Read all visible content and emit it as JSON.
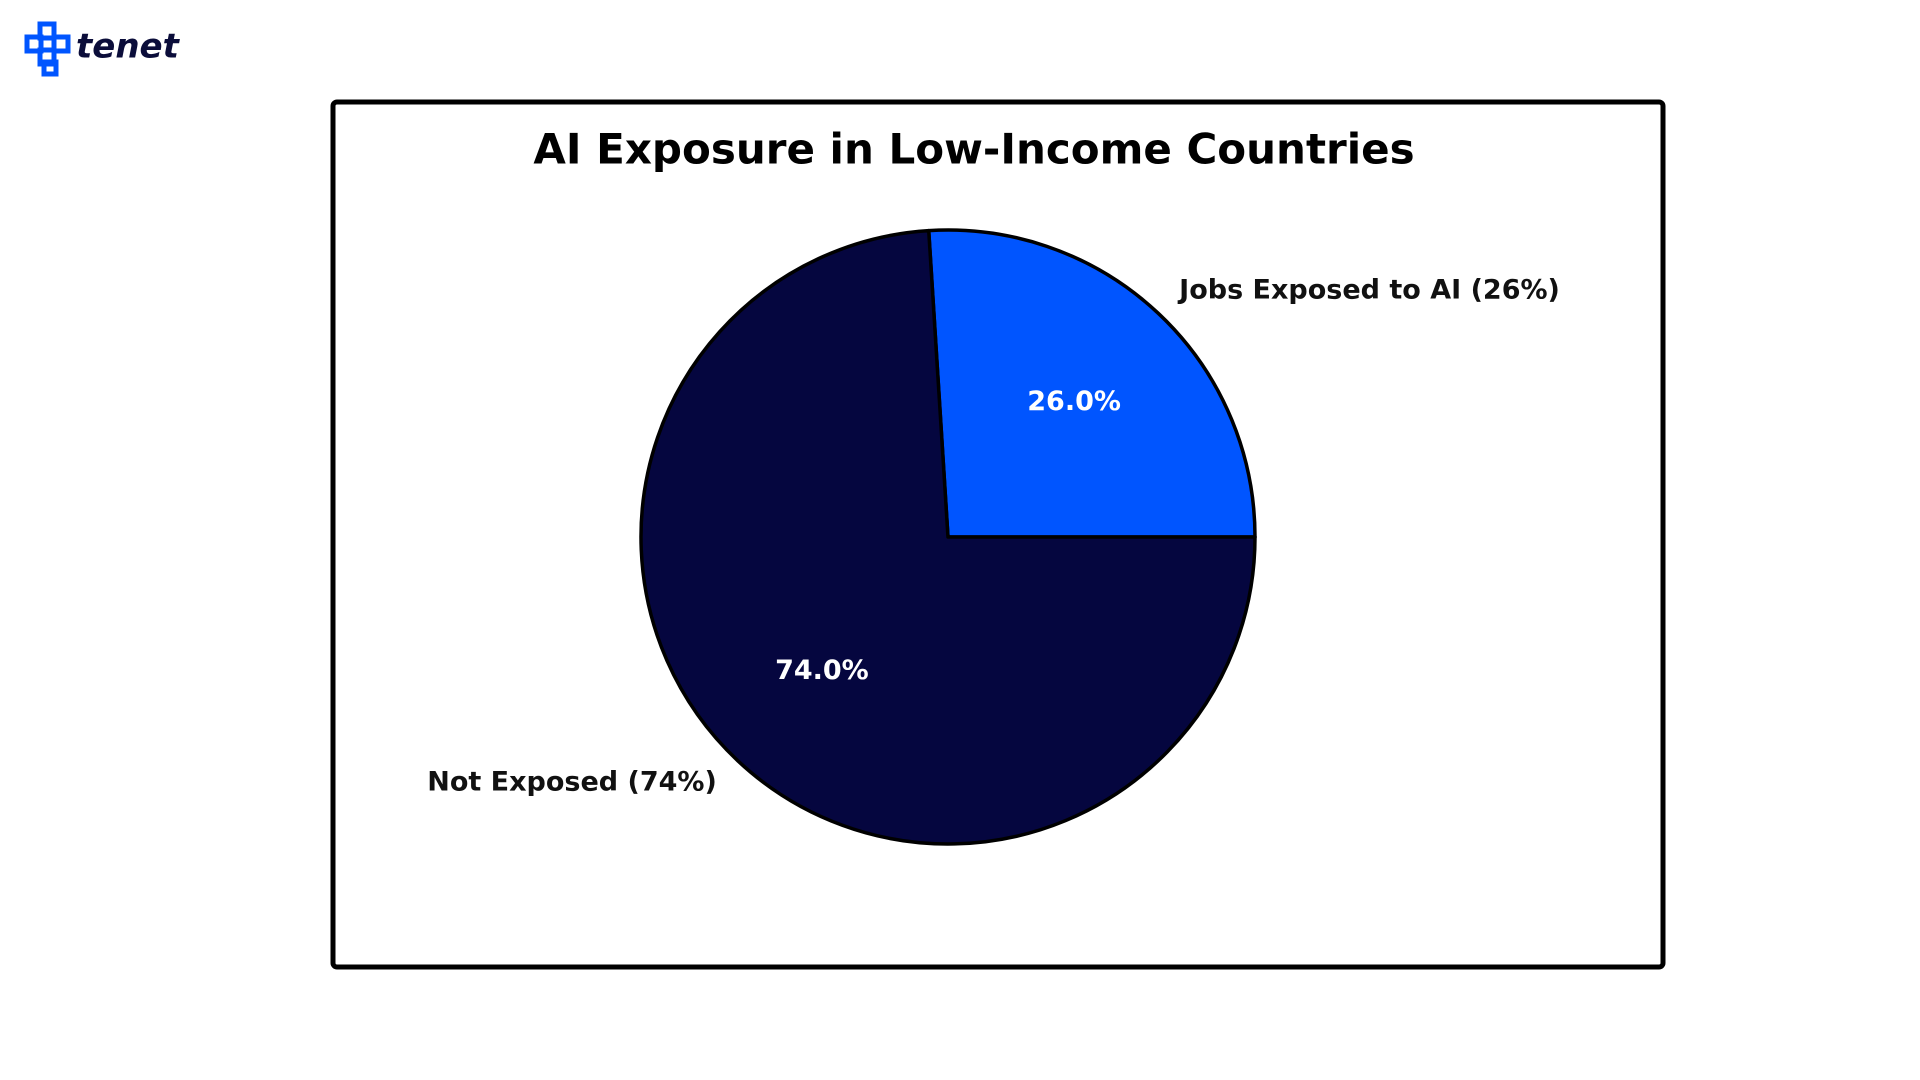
{
  "logo": "tenet",
  "chart_data": {
    "type": "pie",
    "title": "AI Exposure in Low-Income Countries",
    "categories": [
      "Jobs Exposed to AI (26%)",
      "Not Exposed (74%)"
    ],
    "values": [
      26,
      74
    ],
    "value_labels": [
      "26.0%",
      "74.0%"
    ],
    "colors": [
      "#0055ff",
      "#05063f"
    ]
  }
}
